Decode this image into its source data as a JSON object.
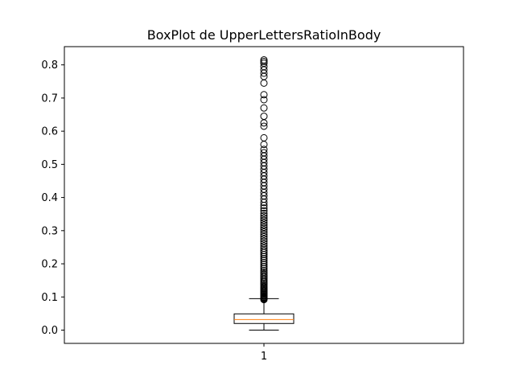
{
  "chart_data": {
    "type": "box",
    "title": "BoxPlot de UpperLettersRatioInBody",
    "xlabel": "",
    "ylabel": "",
    "categories": [
      "1"
    ],
    "ylim": [
      -0.04,
      0.855
    ],
    "yticks": [
      0.0,
      0.1,
      0.2,
      0.3,
      0.4,
      0.5,
      0.6,
      0.7,
      0.8
    ],
    "ytick_labels": [
      "0.0",
      "0.1",
      "0.2",
      "0.3",
      "0.4",
      "0.5",
      "0.6",
      "0.7",
      "0.8"
    ],
    "grid": false,
    "box": {
      "whisker_low": 0.0,
      "q1": 0.02,
      "median": 0.032,
      "q3": 0.049,
      "whisker_high": 0.095,
      "outliers": [
        0.092,
        0.094,
        0.096,
        0.098,
        0.1,
        0.103,
        0.106,
        0.109,
        0.112,
        0.115,
        0.118,
        0.121,
        0.124,
        0.127,
        0.13,
        0.134,
        0.138,
        0.142,
        0.146,
        0.15,
        0.155,
        0.16,
        0.165,
        0.17,
        0.175,
        0.18,
        0.186,
        0.192,
        0.198,
        0.204,
        0.21,
        0.216,
        0.222,
        0.228,
        0.234,
        0.24,
        0.247,
        0.254,
        0.261,
        0.268,
        0.275,
        0.282,
        0.289,
        0.296,
        0.303,
        0.31,
        0.317,
        0.324,
        0.331,
        0.338,
        0.345,
        0.352,
        0.36,
        0.368,
        0.376,
        0.385,
        0.395,
        0.405,
        0.415,
        0.425,
        0.435,
        0.445,
        0.455,
        0.465,
        0.475,
        0.485,
        0.495,
        0.505,
        0.515,
        0.525,
        0.535,
        0.545,
        0.56,
        0.58,
        0.615,
        0.625,
        0.645,
        0.67,
        0.695,
        0.71,
        0.745,
        0.765,
        0.775,
        0.785,
        0.795,
        0.805,
        0.81,
        0.815
      ]
    },
    "colors": {
      "box": "#000000",
      "median": "#ff7f0e",
      "outlier_edge": "#000000"
    }
  }
}
